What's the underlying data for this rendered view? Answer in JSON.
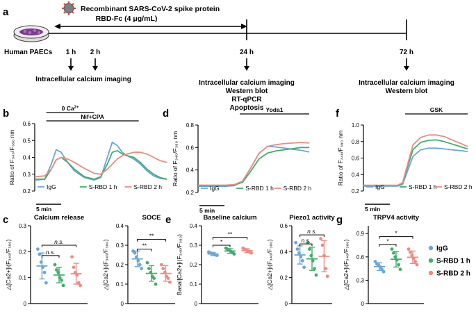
{
  "panel_a": {
    "label": "a",
    "agent_line1": "Recombinant SARS-CoV-2 spike protein",
    "agent_line2": "RBD-Fc (4 μg/mL)",
    "cells_label": "Human PAECs",
    "time_labels": [
      "1 h",
      "2 h",
      "24 h",
      "72 h"
    ],
    "assay_2h": "Intracellular calcium imaging",
    "assay_24h": [
      "Intracellular calcium imaging",
      "Western blot",
      "RT-qPCR",
      "Apoptosis"
    ],
    "assay_72h": [
      "Intracellular calcium imaging",
      "Western blot"
    ]
  },
  "colors": {
    "igg": "#6aa6d6",
    "rbd1": "#3fae6a",
    "rbd2": "#ee8a80",
    "virus": "#d64a3a"
  },
  "legend": {
    "igg": "IgG",
    "rbd1": "S-RBD 1 h",
    "rbd2": "S-RBD 2 h"
  },
  "ratio_label": {
    "prefix": "Ratio of F",
    "mid": "/F",
    "suffix": " nm",
    "sub1": "340",
    "sub2": "380"
  },
  "dcalc_label": {
    "pre": "△[Ca",
    "sup": "2+",
    "mid": "]",
    "sub": "i",
    "post1": "(F",
    "s1": "340",
    "post2": "/F",
    "s2": "380",
    "post3": ")"
  },
  "basal_label": {
    "pre": "Basal[Ca",
    "sup": "2+",
    "mid": "]",
    "sub": "i",
    "post1": "(F",
    "s1": "340",
    "post2": "/F",
    "s2": "380",
    "post3": ")"
  },
  "chart_data": [
    {
      "id": "b",
      "type": "line",
      "label": "b",
      "ylim": [
        0.2,
        0.6
      ],
      "yticks": [
        "0.2",
        "0.3",
        "0.4",
        "0.5",
        "0.6"
      ],
      "scalebar": "5 min",
      "annotations": [
        {
          "text": "0 Ca",
          "sup": "2+",
          "x": [
            0.35,
            1.8
          ]
        },
        {
          "text": "Nif+CPA",
          "x": [
            0.35,
            3.15
          ]
        }
      ],
      "x": [
        0,
        0.3,
        0.5,
        0.65,
        0.8,
        1.0,
        1.2,
        1.5,
        1.8,
        2.0,
        2.2,
        2.35,
        2.5,
        2.65,
        2.8,
        3.0,
        3.2,
        3.4,
        3.6,
        3.8,
        4.0
      ],
      "series": [
        {
          "name": "IgG",
          "values": [
            0.265,
            0.27,
            0.36,
            0.445,
            0.43,
            0.37,
            0.32,
            0.28,
            0.265,
            0.28,
            0.4,
            0.49,
            0.47,
            0.43,
            0.41,
            0.39,
            0.36,
            0.32,
            0.29,
            0.275,
            0.27
          ]
        },
        {
          "name": "S-RBD 1 h",
          "values": [
            0.27,
            0.27,
            0.33,
            0.385,
            0.4,
            0.37,
            0.33,
            0.285,
            0.27,
            0.285,
            0.36,
            0.43,
            0.44,
            0.42,
            0.41,
            0.4,
            0.37,
            0.33,
            0.3,
            0.28,
            0.27
          ]
        },
        {
          "name": "S-RBD 2 h",
          "values": [
            0.285,
            0.29,
            0.33,
            0.385,
            0.4,
            0.39,
            0.37,
            0.335,
            0.305,
            0.3,
            0.33,
            0.36,
            0.39,
            0.41,
            0.42,
            0.43,
            0.43,
            0.42,
            0.4,
            0.38,
            0.37
          ]
        }
      ]
    },
    {
      "id": "d",
      "type": "line",
      "label": "d",
      "ylim": [
        0.2,
        0.8
      ],
      "yticks": [
        "0.2",
        "0.4",
        "0.6",
        "0.8"
      ],
      "scalebar": "5 min",
      "annotations": [
        {
          "text": "Yoda1",
          "x": [
            1.5,
            4.0
          ]
        }
      ],
      "x": [
        0,
        0.5,
        1.0,
        1.3,
        1.6,
        1.9,
        2.2,
        2.5,
        2.8,
        3.1,
        3.4,
        3.7,
        4.0
      ],
      "series": [
        {
          "name": "IgG",
          "values": [
            0.255,
            0.255,
            0.255,
            0.26,
            0.3,
            0.42,
            0.55,
            0.61,
            0.605,
            0.595,
            0.585,
            0.575,
            0.56
          ]
        },
        {
          "name": "S-RBD 1 h",
          "values": [
            0.26,
            0.26,
            0.26,
            0.265,
            0.29,
            0.39,
            0.5,
            0.55,
            0.57,
            0.58,
            0.59,
            0.6,
            0.6
          ]
        },
        {
          "name": "S-RBD 2 h",
          "values": [
            0.265,
            0.265,
            0.265,
            0.27,
            0.3,
            0.42,
            0.55,
            0.61,
            0.625,
            0.635,
            0.64,
            0.645,
            0.64
          ]
        }
      ]
    },
    {
      "id": "f",
      "type": "line",
      "label": "f",
      "ylim": [
        0.2,
        1.0
      ],
      "yticks": [
        "0.2",
        "0.4",
        "0.6",
        "0.8",
        "1.0"
      ],
      "scalebar": "5 min",
      "annotations": [
        {
          "text": "GSK",
          "x": [
            1.6,
            4.0
          ]
        }
      ],
      "x": [
        0,
        0.5,
        1.0,
        1.3,
        1.5,
        1.7,
        1.9,
        2.2,
        2.5,
        2.8,
        3.1,
        3.4,
        3.7,
        4.0
      ],
      "series": [
        {
          "name": "IgG",
          "values": [
            0.26,
            0.26,
            0.26,
            0.26,
            0.28,
            0.45,
            0.62,
            0.7,
            0.72,
            0.72,
            0.71,
            0.7,
            0.69,
            0.68
          ]
        },
        {
          "name": "S-RBD 1 h",
          "values": [
            0.265,
            0.265,
            0.265,
            0.265,
            0.29,
            0.5,
            0.7,
            0.79,
            0.815,
            0.82,
            0.8,
            0.77,
            0.74,
            0.71
          ]
        },
        {
          "name": "S-RBD 2 h",
          "values": [
            0.27,
            0.27,
            0.27,
            0.27,
            0.3,
            0.53,
            0.76,
            0.85,
            0.88,
            0.88,
            0.86,
            0.82,
            0.78,
            0.74
          ]
        }
      ]
    },
    {
      "id": "c1",
      "type": "scatter",
      "label": "c",
      "title": "Calcium release",
      "ylabel": "dcalc",
      "ylim": [
        0,
        0.3
      ],
      "yticks": [
        "0",
        "0.1",
        "0.2",
        "0.3"
      ],
      "groups": [
        {
          "name": "IgG",
          "mean": 0.145,
          "sd": 0.05,
          "points": [
            0.21,
            0.19,
            0.16,
            0.14,
            0.12,
            0.08
          ]
        },
        {
          "name": "S-RBD 1 h",
          "mean": 0.11,
          "sd": 0.03,
          "points": [
            0.15,
            0.13,
            0.12,
            0.1,
            0.09,
            0.07
          ]
        },
        {
          "name": "S-RBD 2 h",
          "mean": 0.115,
          "sd": 0.04,
          "points": [
            0.18,
            0.14,
            0.12,
            0.11,
            0.08,
            0.07
          ]
        }
      ],
      "sig": [
        {
          "from": 0,
          "to": 1,
          "y": 0.185,
          "text": "n.s."
        },
        {
          "from": 0,
          "to": 2,
          "y": 0.225,
          "text": "n.s."
        }
      ]
    },
    {
      "id": "c2",
      "type": "scatter",
      "label": "",
      "title": "SOCE",
      "ylabel": "dcalc",
      "ylim": [
        0,
        0.4
      ],
      "yticks": [
        "0",
        "0.1",
        "0.2",
        "0.3",
        "0.4"
      ],
      "groups": [
        {
          "name": "IgG",
          "mean": 0.23,
          "sd": 0.04,
          "points": [
            0.27,
            0.26,
            0.24,
            0.22,
            0.2,
            0.18
          ]
        },
        {
          "name": "S-RBD 1 h",
          "mean": 0.155,
          "sd": 0.04,
          "points": [
            0.21,
            0.18,
            0.16,
            0.14,
            0.13,
            0.1
          ]
        },
        {
          "name": "S-RBD 2 h",
          "mean": 0.155,
          "sd": 0.04,
          "points": [
            0.2,
            0.18,
            0.16,
            0.14,
            0.13,
            0.11
          ]
        }
      ],
      "sig": [
        {
          "from": 0,
          "to": 1,
          "y": 0.28,
          "text": "**"
        },
        {
          "from": 0,
          "to": 2,
          "y": 0.33,
          "text": "**"
        }
      ]
    },
    {
      "id": "e1",
      "type": "scatter",
      "label": "e",
      "title": "Baseline calcium",
      "ylabel": "basal",
      "ylim": [
        0,
        0.4
      ],
      "yticks": [
        "0",
        "0.1",
        "0.2",
        "0.3",
        "0.4"
      ],
      "groups": [
        {
          "name": "IgG",
          "mean": 0.255,
          "sd": 0.008,
          "points": [
            0.265,
            0.26,
            0.258,
            0.255,
            0.25,
            0.248
          ]
        },
        {
          "name": "S-RBD 1 h",
          "mean": 0.27,
          "sd": 0.012,
          "points": [
            0.285,
            0.28,
            0.275,
            0.268,
            0.262,
            0.255
          ]
        },
        {
          "name": "S-RBD 2 h",
          "mean": 0.272,
          "sd": 0.01,
          "points": [
            0.285,
            0.28,
            0.275,
            0.27,
            0.265,
            0.26
          ]
        }
      ],
      "sig": [
        {
          "from": 0,
          "to": 1,
          "y": 0.3,
          "text": "*"
        },
        {
          "from": 0,
          "to": 2,
          "y": 0.34,
          "text": "**"
        }
      ]
    },
    {
      "id": "e2",
      "type": "scatter",
      "label": "",
      "title": "Piezo1 activity",
      "ylabel": "dcalc",
      "ylim": [
        0,
        0.6
      ],
      "yticks": [
        "0",
        "0.2",
        "0.4",
        "0.6"
      ],
      "groups": [
        {
          "name": "IgG",
          "mean": 0.375,
          "sd": 0.07,
          "points": [
            0.47,
            0.42,
            0.39,
            0.36,
            0.33,
            0.28
          ]
        },
        {
          "name": "S-RBD 1 h",
          "mean": 0.345,
          "sd": 0.09,
          "points": [
            0.47,
            0.42,
            0.37,
            0.33,
            0.27,
            0.22
          ]
        },
        {
          "name": "S-RBD 2 h",
          "mean": 0.365,
          "sd": 0.12,
          "points": [
            0.5,
            0.45,
            0.37,
            0.27,
            0.21
          ]
        }
      ],
      "sig": [
        {
          "from": 0,
          "to": 1,
          "y": 0.46,
          "text": "n.s."
        },
        {
          "from": 0,
          "to": 2,
          "y": 0.53,
          "text": "n.s."
        }
      ]
    },
    {
      "id": "g",
      "type": "scatter",
      "label": "g",
      "title": "TRPV4 activity",
      "ylabel": "dcalc",
      "ylim": [
        0,
        1.0
      ],
      "yticks": [
        "0",
        "0.3",
        "0.6",
        "0.9"
      ],
      "groups": [
        {
          "name": "IgG",
          "mean": 0.475,
          "sd": 0.05,
          "points": [
            0.54,
            0.51,
            0.49,
            0.47,
            0.44,
            0.41
          ]
        },
        {
          "name": "S-RBD 1 h",
          "mean": 0.57,
          "sd": 0.1,
          "points": [
            0.7,
            0.65,
            0.6,
            0.56,
            0.5,
            0.44
          ]
        },
        {
          "name": "S-RBD 2 h",
          "mean": 0.595,
          "sd": 0.08,
          "points": [
            0.7,
            0.66,
            0.62,
            0.58,
            0.54,
            0.5
          ]
        }
      ],
      "sig": [
        {
          "from": 0,
          "to": 1,
          "y": 0.76,
          "text": "*"
        },
        {
          "from": 0,
          "to": 2,
          "y": 0.86,
          "text": "*"
        }
      ]
    }
  ]
}
